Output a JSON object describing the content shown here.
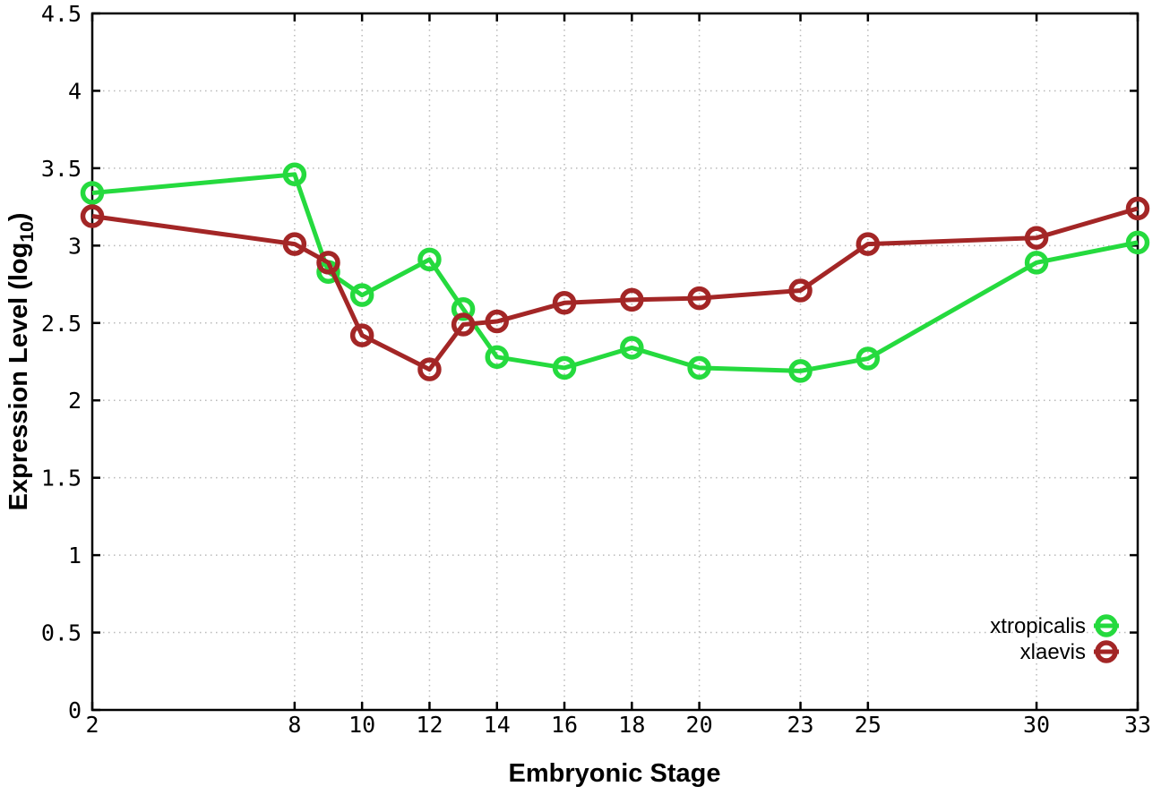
{
  "figure": {
    "background": "#ffffff",
    "axis_color": "#000000",
    "grid_color": "#b9b9b9"
  },
  "chart_data": {
    "type": "line",
    "title": "",
    "xlabel": "Embryonic Stage",
    "ylabel": "Expression Level (log10)",
    "ylabel_parts": [
      "Expression Level (log",
      "10",
      ")"
    ],
    "x": [
      2,
      8,
      9,
      10,
      12,
      13,
      14,
      16,
      18,
      20,
      23,
      25,
      30,
      33
    ],
    "series": [
      {
        "name": "xtropicalis",
        "color": "#25da3e",
        "marker": "open-circle",
        "values": [
          3.34,
          3.46,
          2.83,
          2.68,
          2.91,
          2.59,
          2.28,
          2.21,
          2.34,
          2.21,
          2.19,
          2.27,
          2.89,
          3.02
        ]
      },
      {
        "name": "xlaevis",
        "color": "#a32626",
        "marker": "open-circle",
        "values": [
          3.19,
          3.01,
          2.89,
          2.42,
          2.2,
          2.49,
          2.51,
          2.63,
          2.65,
          2.66,
          2.71,
          3.01,
          3.05,
          3.24
        ]
      }
    ],
    "xlim": [
      2,
      33
    ],
    "ylim": [
      0,
      4.5
    ],
    "xticks": [
      2,
      8,
      10,
      12,
      14,
      16,
      18,
      20,
      23,
      25,
      30,
      33
    ],
    "yticks": [
      0,
      0.5,
      1,
      1.5,
      2,
      2.5,
      3,
      3.5,
      4,
      4.5
    ],
    "grid": true,
    "grid_style": "dotted",
    "legend_position": "bottom-right",
    "legend": [
      "xtropicalis",
      "xlaevis"
    ]
  }
}
